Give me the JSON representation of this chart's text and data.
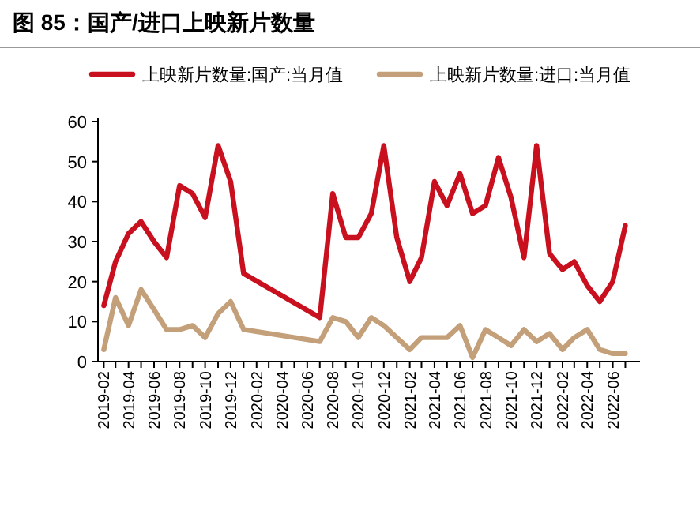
{
  "chart_data": {
    "type": "line",
    "title": "图 85：国产/进口上映新片数量",
    "x": [
      "2019-02",
      "2019-03",
      "2019-04",
      "2019-05",
      "2019-06",
      "2019-07",
      "2019-08",
      "2019-09",
      "2019-10",
      "2019-11",
      "2019-12",
      "2020-01",
      "2020-07",
      "2020-08",
      "2020-09",
      "2020-10",
      "2020-11",
      "2020-12",
      "2021-01",
      "2021-02",
      "2021-03",
      "2021-04",
      "2021-05",
      "2021-06",
      "2021-07",
      "2021-08",
      "2021-09",
      "2021-10",
      "2021-11",
      "2021-12",
      "2022-01",
      "2022-02",
      "2022-03",
      "2022-04",
      "2022-05",
      "2022-06",
      "2022-07"
    ],
    "series": [
      {
        "name": "上映新片数量:国产:当月值",
        "color": "#c8101e",
        "values": [
          14,
          25,
          32,
          35,
          30,
          26,
          44,
          42,
          36,
          54,
          45,
          22,
          11,
          42,
          31,
          31,
          37,
          54,
          31,
          20,
          26,
          45,
          39,
          47,
          37,
          39,
          51,
          41,
          26,
          54,
          27,
          23,
          25,
          19,
          15,
          20,
          34
        ]
      },
      {
        "name": "上映新片数量:进口:当月值",
        "color": "#c4a07a",
        "values": [
          3,
          16,
          9,
          18,
          13,
          8,
          8,
          9,
          6,
          12,
          15,
          8,
          5,
          11,
          10,
          6,
          11,
          9,
          6,
          3,
          6,
          6,
          6,
          9,
          1,
          8,
          6,
          4,
          8,
          5,
          7,
          3,
          6,
          8,
          3,
          2,
          2
        ]
      }
    ],
    "xlim": [
      "2019-01-18",
      "2022-08-05"
    ],
    "xticks": [
      {
        "value": "2019-02",
        "label": "2019-02"
      },
      {
        "value": "2019-03",
        "label": null
      },
      {
        "value": "2019-04",
        "label": "2019-04"
      },
      {
        "value": "2019-05",
        "label": null
      },
      {
        "value": "2019-06",
        "label": "2019-06"
      },
      {
        "value": "2019-07",
        "label": null
      },
      {
        "value": "2019-08",
        "label": "2019-08"
      },
      {
        "value": "2019-09",
        "label": null
      },
      {
        "value": "2019-10",
        "label": "2019-10"
      },
      {
        "value": "2019-11",
        "label": null
      },
      {
        "value": "2019-12",
        "label": "2019-12"
      },
      {
        "value": "2020-01",
        "label": null
      },
      {
        "value": "2020-02",
        "label": "2020-02"
      },
      {
        "value": "2020-03",
        "label": null
      },
      {
        "value": "2020-04",
        "label": "2020-04"
      },
      {
        "value": "2020-05",
        "label": null
      },
      {
        "value": "2020-06",
        "label": "2020-06"
      },
      {
        "value": "2020-07",
        "label": null
      },
      {
        "value": "2020-08",
        "label": "2020-08"
      },
      {
        "value": "2020-09",
        "label": null
      },
      {
        "value": "2020-10",
        "label": "2020-10"
      },
      {
        "value": "2020-11",
        "label": null
      },
      {
        "value": "2020-12",
        "label": "2020-12"
      },
      {
        "value": "2021-01",
        "label": null
      },
      {
        "value": "2021-02",
        "label": "2021-02"
      },
      {
        "value": "2021-03",
        "label": null
      },
      {
        "value": "2021-04",
        "label": "2021-04"
      },
      {
        "value": "2021-05",
        "label": null
      },
      {
        "value": "2021-06",
        "label": "2021-06"
      },
      {
        "value": "2021-07",
        "label": null
      },
      {
        "value": "2021-08",
        "label": "2021-08"
      },
      {
        "value": "2021-09",
        "label": null
      },
      {
        "value": "2021-10",
        "label": "2021-10"
      },
      {
        "value": "2021-11",
        "label": null
      },
      {
        "value": "2021-12",
        "label": "2021-12"
      },
      {
        "value": "2022-01",
        "label": null
      },
      {
        "value": "2022-02",
        "label": "2022-02"
      },
      {
        "value": "2022-03",
        "label": null
      },
      {
        "value": "2022-04",
        "label": "2022-04"
      },
      {
        "value": "2022-05",
        "label": null
      },
      {
        "value": "2022-06",
        "label": "2022-06"
      },
      {
        "value": "2022-07",
        "label": null
      }
    ],
    "ylim": [
      0,
      60
    ],
    "yticks": [
      0,
      10,
      20,
      30,
      40,
      50,
      60
    ],
    "grid": false,
    "legend": "top",
    "marker": "none",
    "line_style": "solid"
  }
}
